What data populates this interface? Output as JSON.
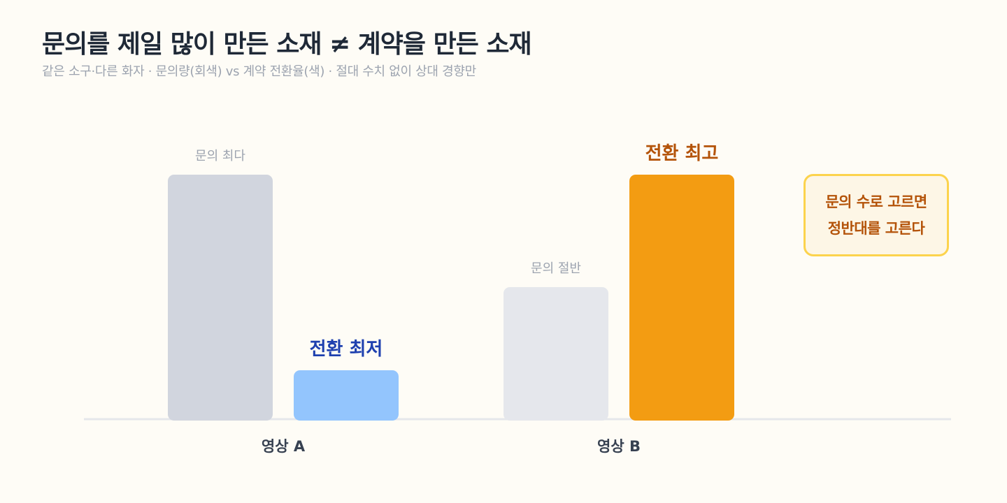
{
  "header": {
    "title": "문의를 제일 많이 만든 소재 ≠ 계약을 만든 소재",
    "subtitle": "같은 소구·다른 화자 · 문의량(회색) vs 계약 전환율(색) · 절대 수치 없이 상대 경향만"
  },
  "chart_data": {
    "type": "bar",
    "categories": [
      "영상 A",
      "영상 B"
    ],
    "series": [
      {
        "name": "문의량",
        "values": [
          1.0,
          0.54
        ],
        "labels": [
          "문의 최다",
          "문의 절반"
        ],
        "colors": [
          "#D1D5DE",
          "#E5E7EC"
        ],
        "label_color": "#9CA3AF"
      },
      {
        "name": "계약 전환율",
        "values": [
          0.2,
          1.0
        ],
        "labels": [
          "전환 최저",
          "전환 최고"
        ],
        "colors": [
          "#93C5FD",
          "#F39C12"
        ],
        "label_colors": [
          "#1E40AF",
          "#B45309"
        ]
      }
    ],
    "ylim": [
      0,
      1.0
    ],
    "grid": false,
    "xlabel": "",
    "ylabel": ""
  },
  "callout": {
    "line1": "문의 수로 고르면",
    "line2": "정반대를 고른다"
  }
}
